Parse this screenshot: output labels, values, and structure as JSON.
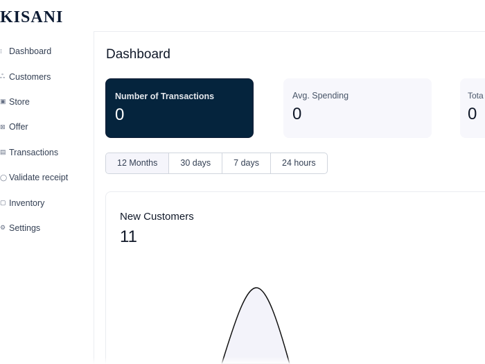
{
  "brand": {
    "logo": "KISANI"
  },
  "sidebar": {
    "items": [
      {
        "label": "Dashboard",
        "icon": "dashboard-icon"
      },
      {
        "label": "Customers",
        "icon": "customers-icon"
      },
      {
        "label": "Store",
        "icon": "store-icon"
      },
      {
        "label": "Offer",
        "icon": "offer-icon"
      },
      {
        "label": "Transactions",
        "icon": "transactions-icon"
      },
      {
        "label": "Validate receipt",
        "icon": "validate-icon"
      },
      {
        "label": "Inventory",
        "icon": "inventory-icon"
      },
      {
        "label": "Settings",
        "icon": "settings-icon"
      }
    ]
  },
  "main": {
    "title": "Dashboard",
    "cards": [
      {
        "label": "Number of Transactions",
        "value": "0"
      },
      {
        "label": "Avg. Spending",
        "value": "0"
      },
      {
        "label": "Tota",
        "value": "0"
      }
    ],
    "ranges": [
      "12 Months",
      "30 days",
      "7 days",
      "24 hours"
    ],
    "active_range": "12 Months",
    "chart": {
      "title": "New Customers",
      "value": "11"
    }
  },
  "colors": {
    "dark_card": "#05243d",
    "light_card": "#f7f7fc"
  }
}
